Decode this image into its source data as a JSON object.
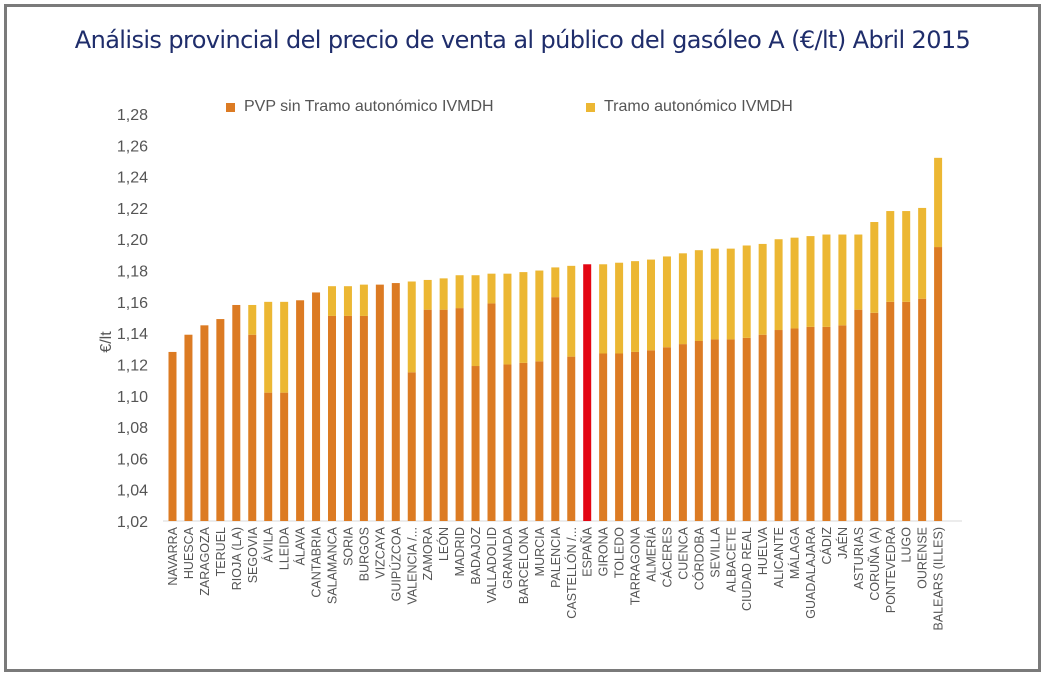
{
  "chart_data": {
    "type": "bar",
    "stacked": true,
    "title": "Análisis provincial del precio de venta al público del gasóleo A (€/lt) Abril 2015",
    "xlabel": "",
    "ylabel": "€/lt",
    "ylim": [
      1.02,
      1.28
    ],
    "yticks": [
      "1,02",
      "1,04",
      "1,06",
      "1,08",
      "1,10",
      "1,12",
      "1,14",
      "1,16",
      "1,18",
      "1,20",
      "1,22",
      "1,24",
      "1,26",
      "1,28"
    ],
    "ytick_values": [
      1.02,
      1.04,
      1.06,
      1.08,
      1.1,
      1.12,
      1.14,
      1.16,
      1.18,
      1.2,
      1.22,
      1.24,
      1.26,
      1.28
    ],
    "grid": false,
    "legend_position": "top",
    "highlight_category": "ESPAÑA",
    "highlight_color": "#e30613",
    "categories": [
      "NAVARRA",
      "HUESCA",
      "ZARAGOZA",
      "TERUEL",
      "RIOJA (LA)",
      "SEGOVIA",
      "ÁVILA",
      "LLEIDA",
      "ÁLAVA",
      "CANTABRIA",
      "SALAMANCA",
      "SORIA",
      "BURGOS",
      "VIZCAYA",
      "GUIPÚZCOA",
      "VALENCIA /...",
      "ZAMORA",
      "LEÓN",
      "MADRID",
      "BADAJOZ",
      "VALLADOLID",
      "GRANADA",
      "BARCELONA",
      "MURCIA",
      "PALENCIA",
      "CASTELLÓN /...",
      "ESPAÑA",
      "GIRONA",
      "TOLEDO",
      "TARRAGONA",
      "ALMERÍA",
      "CÁCERES",
      "CUENCA",
      "CÓRDOBA",
      "SEVILLA",
      "ALBACETE",
      "CIUDAD REAL",
      "HUELVA",
      "ALICANTE",
      "MÁLAGA",
      "GUADALAJARA",
      "CÁDIZ",
      "JAÉN",
      "ASTURIAS",
      "CORUÑA (A)",
      "PONTEVEDRA",
      "LUGO",
      "OURENSE",
      "BALEARS (ILLES)"
    ],
    "series": [
      {
        "name": "PVP sin Tramo autonómico IVMDH",
        "color": "#dc7b23",
        "values": [
          1.128,
          1.139,
          1.145,
          1.149,
          1.158,
          1.139,
          1.102,
          1.102,
          1.161,
          1.166,
          1.151,
          1.151,
          1.151,
          1.171,
          1.172,
          1.115,
          1.155,
          1.155,
          1.156,
          1.119,
          1.159,
          1.12,
          1.121,
          1.122,
          1.163,
          1.125,
          1.184,
          1.127,
          1.127,
          1.128,
          1.129,
          1.131,
          1.133,
          1.135,
          1.136,
          1.136,
          1.137,
          1.139,
          1.142,
          1.143,
          1.144,
          1.144,
          1.145,
          1.155,
          1.153,
          1.16,
          1.16,
          1.162,
          1.195
        ]
      },
      {
        "name": "Tramo autonómico IVMDH",
        "color": "#ecb733",
        "values": [
          0,
          0,
          0,
          0,
          0,
          0.019,
          0.058,
          0.058,
          0,
          0,
          0.019,
          0.019,
          0.02,
          0,
          0,
          0.058,
          0.019,
          0.02,
          0.021,
          0.058,
          0.019,
          0.058,
          0.058,
          0.058,
          0.019,
          0.058,
          0,
          0.057,
          0.058,
          0.058,
          0.058,
          0.058,
          0.058,
          0.058,
          0.058,
          0.058,
          0.059,
          0.058,
          0.058,
          0.058,
          0.058,
          0.059,
          0.058,
          0.048,
          0.058,
          0.058,
          0.058,
          0.058,
          0.057
        ]
      }
    ]
  }
}
